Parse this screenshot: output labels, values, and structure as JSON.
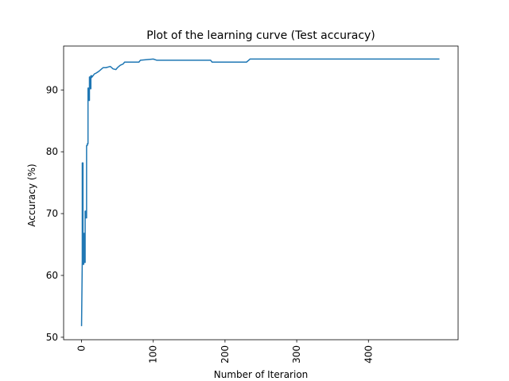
{
  "colors": {
    "line": "#1f77b4",
    "axes": "#000000",
    "background": "#ffffff"
  },
  "chart_data": {
    "type": "line",
    "title": "Plot of the learning curve (Test accuracy)",
    "xlabel": "Number of Iterarion",
    "ylabel": "Accuracy (%)",
    "xlim": [
      -25,
      525
    ],
    "ylim": [
      49.6,
      97.1
    ],
    "xticks": [
      0,
      100,
      200,
      300,
      400
    ],
    "xtick_labels": [
      "0",
      "100",
      "200",
      "300",
      "400"
    ],
    "xtick_rotation": 90,
    "yticks": [
      50,
      60,
      70,
      80,
      90
    ],
    "ytick_labels": [
      "50",
      "60",
      "70",
      "80",
      "90"
    ],
    "grid": false,
    "legend": "none",
    "series": [
      {
        "x": [
          0,
          1,
          1,
          2,
          2,
          3,
          3,
          4,
          4,
          5,
          5,
          6,
          6,
          7,
          7,
          8,
          8,
          9,
          9,
          10,
          10,
          11,
          11,
          12,
          12,
          13,
          13,
          14,
          14,
          16,
          18,
          20,
          24,
          28,
          30,
          34,
          40,
          44,
          48,
          50,
          52,
          54,
          58,
          60,
          80,
          82,
          100,
          105,
          180,
          182,
          230,
          233,
          235,
          499
        ],
        "y": [
          51.8,
          62.5,
          78.2,
          78.2,
          61.8,
          61.8,
          66.8,
          66.8,
          62.1,
          62.1,
          70.4,
          70.4,
          69.3,
          69.3,
          81.0,
          81.0,
          81.3,
          81.3,
          90.3,
          90.3,
          88.3,
          88.3,
          92.1,
          92.1,
          90.2,
          90.2,
          92.3,
          92.3,
          92.0,
          92.3,
          92.6,
          92.7,
          93.0,
          93.4,
          93.6,
          93.6,
          93.8,
          93.4,
          93.3,
          93.6,
          93.8,
          94.0,
          94.2,
          94.5,
          94.5,
          94.8,
          95.0,
          94.8,
          94.8,
          94.5,
          94.5,
          94.8,
          95.0,
          95.0
        ]
      }
    ]
  }
}
